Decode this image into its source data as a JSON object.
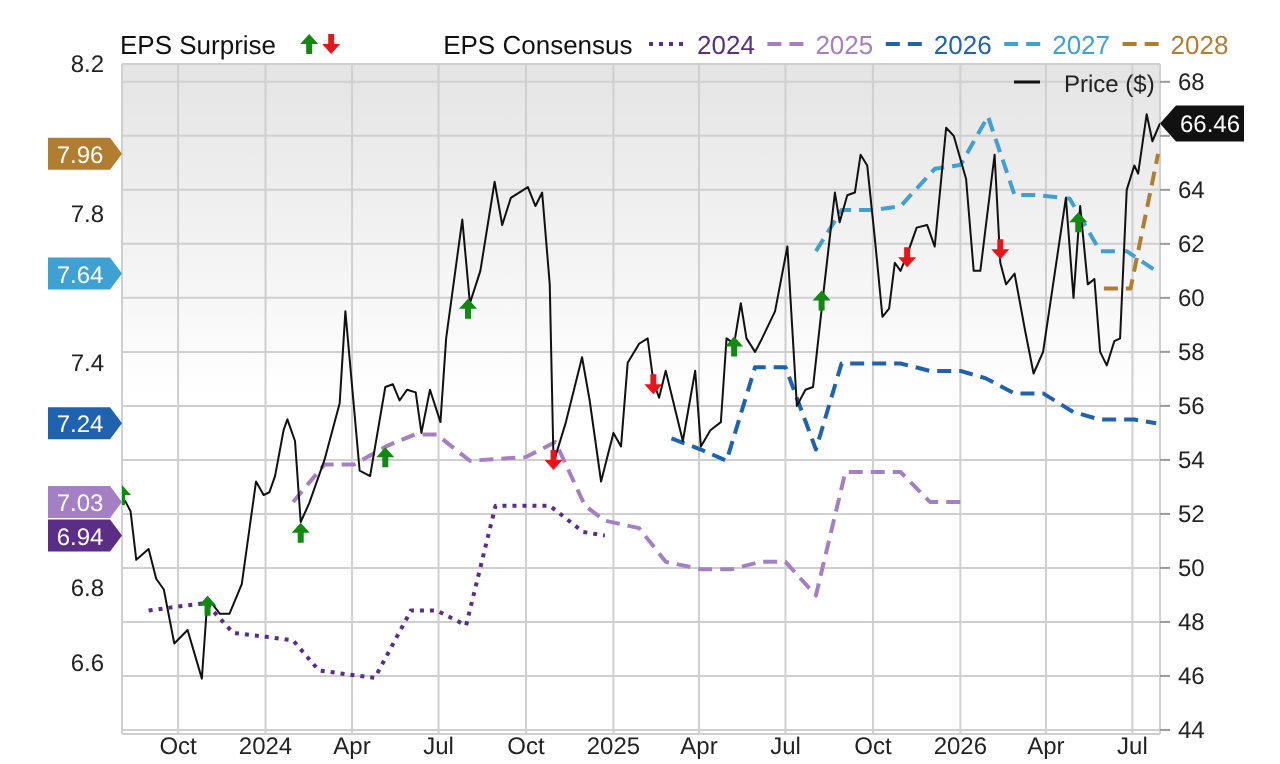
{
  "chart_data": {
    "type": "line",
    "legend_title": "EPS Consensus",
    "legend": "top",
    "grid": true,
    "xlim": [
      "2023-08-03",
      "2026-07-30"
    ],
    "xticks": [
      {
        "value": "2023-10-01",
        "label": "Oct"
      },
      {
        "value": "2024-01-01",
        "label": "2024"
      },
      {
        "value": "2024-04-01",
        "label": "Apr"
      },
      {
        "value": "2024-07-01",
        "label": "Jul"
      },
      {
        "value": "2024-10-01",
        "label": "Oct"
      },
      {
        "value": "2025-01-01",
        "label": "2025"
      },
      {
        "value": "2025-04-01",
        "label": "Apr"
      },
      {
        "value": "2025-07-01",
        "label": "Jul"
      },
      {
        "value": "2025-10-01",
        "label": "Oct"
      },
      {
        "value": "2026-01-01",
        "label": "2026"
      },
      {
        "value": "2026-04-01",
        "label": "Apr"
      },
      {
        "value": "2026-07-01",
        "label": "Jul"
      }
    ],
    "ylim": [
      6.41,
      8.2
    ],
    "yticks": [
      6.6,
      6.8,
      6.94,
      7.03,
      7.24,
      7.4,
      7.64,
      7.8,
      7.96,
      8.2
    ],
    "y2lim": [
      43.85,
      68.66
    ],
    "y2ticks": [
      44,
      46,
      48,
      50,
      52,
      54,
      56,
      58,
      60,
      62,
      64,
      {
        "value": 66,
        "label": null
      },
      68
    ],
    "annotations": [
      "EPS Surprise"
    ],
    "series": [
      {
        "name": "2024",
        "color": "#5b2d86",
        "line_style": "dotted",
        "x": [
          "2023-08-31",
          "2023-10-30",
          "2023-11-28",
          "2024-01-01",
          "2024-01-30",
          "2024-02-26",
          "2024-03-25",
          "2024-04-25",
          "2024-06-02",
          "2024-06-29",
          "2024-07-30",
          "2024-08-30",
          "2024-10-26",
          "2024-11-30",
          "2024-12-23"
        ],
        "values": [
          6.74,
          6.76,
          6.68,
          6.67,
          6.66,
          6.58,
          6.57,
          6.56,
          6.74,
          6.74,
          6.7,
          7.02,
          7.02,
          6.95,
          6.94
        ]
      },
      {
        "name": "2025",
        "color": "#a57fc4",
        "line_style": "dashed",
        "x": [
          "2024-01-30",
          "2024-03-03",
          "2024-04-03",
          "2024-05-08",
          "2024-06-06",
          "2024-06-29",
          "2024-08-03",
          "2024-10-01",
          "2024-11-01",
          "2024-12-02",
          "2024-12-23",
          "2025-01-28",
          "2025-02-25",
          "2025-04-03",
          "2025-05-05",
          "2025-06-05",
          "2025-07-01",
          "2025-08-02",
          "2025-09-02",
          "2025-10-30",
          "2025-11-30",
          "2026-01-01"
        ],
        "values": [
          7.03,
          7.13,
          7.13,
          7.18,
          7.21,
          7.21,
          7.14,
          7.15,
          7.19,
          7.02,
          6.98,
          6.96,
          6.87,
          6.85,
          6.85,
          6.87,
          6.87,
          6.78,
          7.11,
          7.11,
          7.03,
          7.03
        ]
      },
      {
        "name": "2026",
        "color": "#1f62b0",
        "line_style": "dashed",
        "x": [
          "2025-03-03",
          "2025-04-03",
          "2025-04-30",
          "2025-05-30",
          "2025-07-01",
          "2025-08-02",
          "2025-08-29",
          "2025-10-30",
          "2025-11-30",
          "2026-01-01",
          "2026-01-28",
          "2026-02-27",
          "2026-03-29",
          "2026-04-30",
          "2026-05-28",
          "2026-07-03",
          "2026-07-26"
        ],
        "values": [
          7.2,
          7.17,
          7.14,
          7.39,
          7.39,
          7.17,
          7.4,
          7.4,
          7.38,
          7.38,
          7.36,
          7.32,
          7.32,
          7.27,
          7.25,
          7.25,
          7.24
        ]
      },
      {
        "name": "2027",
        "color": "#3fa0d2",
        "line_style": "dashed",
        "x": [
          "2025-08-02",
          "2025-08-29",
          "2025-10-03",
          "2025-10-30",
          "2025-12-05",
          "2026-01-01",
          "2026-01-30",
          "2026-02-27",
          "2026-03-23",
          "2026-04-26",
          "2026-05-28",
          "2026-06-25",
          "2026-07-30"
        ],
        "values": [
          7.7,
          7.81,
          7.81,
          7.82,
          7.92,
          7.93,
          8.06,
          7.85,
          7.85,
          7.84,
          7.7,
          7.7,
          7.64
        ]
      },
      {
        "name": "2028",
        "color": "#b17e31",
        "line_style": "dashed",
        "x": [
          "2026-06-01",
          "2026-06-29",
          "2026-07-28"
        ],
        "values": [
          7.6,
          7.6,
          7.96
        ]
      },
      {
        "name": "Price ($)",
        "color": "#111111",
        "axis": "y2",
        "line_style": "solid",
        "x": [
          "2023-08-06",
          "2023-08-12",
          "2023-08-18",
          "2023-08-31",
          "2023-09-08",
          "2023-09-16",
          "2023-09-27",
          "2023-10-11",
          "2023-10-26",
          "2023-11-01",
          "2023-11-14",
          "2023-11-24",
          "2023-12-07",
          "2023-12-22",
          "2023-12-30",
          "2024-01-05",
          "2024-01-11",
          "2024-01-20",
          "2024-01-24",
          "2024-02-01",
          "2024-02-07",
          "2024-02-16",
          "2024-03-03",
          "2024-03-19",
          "2024-03-25",
          "2024-04-09",
          "2024-04-20",
          "2024-05-06",
          "2024-05-14",
          "2024-05-21",
          "2024-05-29",
          "2024-06-07",
          "2024-06-13",
          "2024-06-22",
          "2024-07-03",
          "2024-07-09",
          "2024-07-26",
          "2024-08-03",
          "2024-08-14",
          "2024-08-29",
          "2024-09-06",
          "2024-09-15",
          "2024-10-03",
          "2024-10-11",
          "2024-10-18",
          "2024-10-26",
          "2024-10-30",
          "2024-11-12",
          "2024-11-29",
          "2024-12-07",
          "2024-12-19",
          "2025-01-01",
          "2025-01-09",
          "2025-01-16",
          "2025-01-28",
          "2025-02-06",
          "2025-02-12",
          "2025-02-18",
          "2025-02-25",
          "2025-03-15",
          "2025-03-28",
          "2025-04-03",
          "2025-04-13",
          "2025-04-24",
          "2025-04-30",
          "2025-05-08",
          "2025-05-15",
          "2025-05-21",
          "2025-05-30",
          "2025-06-05",
          "2025-06-20",
          "2025-07-03",
          "2025-07-13",
          "2025-07-22",
          "2025-07-30",
          "2025-08-10",
          "2025-08-22",
          "2025-08-27",
          "2025-09-04",
          "2025-09-12",
          "2025-09-18",
          "2025-09-25",
          "2025-10-03",
          "2025-10-11",
          "2025-10-18",
          "2025-10-24",
          "2025-10-30",
          "2025-11-06",
          "2025-11-16",
          "2025-11-27",
          "2025-12-05",
          "2025-12-17",
          "2025-12-25",
          "2026-01-07",
          "2026-01-15",
          "2026-01-22",
          "2026-02-06",
          "2026-02-12",
          "2026-02-18",
          "2026-02-27",
          "2026-03-10",
          "2026-03-19",
          "2026-03-29",
          "2026-04-22",
          "2026-04-30",
          "2026-05-07",
          "2026-05-15",
          "2026-05-22",
          "2026-05-28",
          "2026-06-04",
          "2026-06-12",
          "2026-06-18",
          "2026-06-25",
          "2026-07-03",
          "2026-07-07",
          "2026-07-16",
          "2026-07-22",
          "2026-07-30"
        ],
        "values": [
          52.5,
          52.1,
          50.3,
          50.7,
          49.6,
          49.2,
          47.2,
          47.7,
          45.9,
          48.9,
          48.3,
          48.3,
          49.4,
          53.2,
          52.7,
          52.8,
          53.4,
          55.1,
          55.5,
          54.7,
          51.7,
          52.4,
          54,
          56.1,
          59.5,
          53.6,
          53.4,
          56.7,
          56.8,
          56.2,
          56.6,
          56.5,
          55,
          56.6,
          55.4,
          58.5,
          62.9,
          59.8,
          61,
          64.3,
          62.7,
          63.7,
          64.1,
          63.4,
          63.9,
          60.5,
          53.9,
          55.4,
          57.8,
          56.2,
          53.2,
          55,
          54.5,
          57.6,
          58.3,
          58.5,
          56.9,
          56.3,
          57.3,
          54.7,
          57.3,
          54.5,
          55.1,
          55.4,
          58.5,
          58.3,
          59.8,
          58.5,
          58,
          58.4,
          59.5,
          61.9,
          56,
          56.6,
          56.7,
          60.2,
          63.9,
          62.8,
          63.8,
          63.9,
          65.3,
          64.9,
          62.2,
          59.3,
          59.6,
          61.3,
          61,
          61.6,
          62.6,
          62.7,
          61.9,
          66.3,
          66,
          64.4,
          61,
          61,
          65.3,
          61.3,
          60.5,
          60.9,
          58.8,
          57.2,
          58,
          63.7,
          60,
          63.4,
          60.5,
          60.7,
          58,
          57.5,
          58.4,
          58.5,
          64,
          64.9,
          64.6,
          66.8,
          65.8,
          66.46
        ],
        "value_labels": [
          null,
          null,
          null,
          null,
          null,
          null,
          null,
          null,
          null,
          null,
          null,
          null,
          null,
          null,
          null,
          null,
          null,
          null,
          null,
          null,
          null,
          null,
          null,
          null,
          null,
          null,
          null,
          null,
          null,
          null,
          null,
          null,
          null,
          null,
          null,
          null,
          null,
          null,
          null,
          null,
          null,
          null,
          null,
          null,
          null,
          null,
          null,
          null,
          null,
          null,
          null,
          null,
          null,
          null,
          null,
          null,
          null,
          null,
          null,
          null,
          null,
          null,
          null,
          null,
          null,
          null,
          null,
          null,
          null,
          null,
          null,
          null,
          null,
          null,
          null,
          null,
          null,
          null,
          null,
          null,
          null,
          null,
          null,
          null,
          null,
          null,
          null,
          null,
          null,
          null,
          null,
          null,
          null,
          null,
          null,
          null,
          null,
          null,
          null,
          null,
          null,
          null,
          null,
          null,
          null,
          null,
          null,
          null,
          null,
          null,
          null,
          null,
          null,
          null,
          null,
          null,
          null,
          "66.46"
        ]
      },
      {
        "type": "scatter",
        "color": "#118a11",
        "axis": "y2",
        "marker": "triangle",
        "x": [
          "2023-08-03",
          "2023-11-01",
          "2024-02-07",
          "2024-05-06",
          "2024-08-01",
          "2025-05-08",
          "2025-08-08",
          "2026-05-05"
        ],
        "values": [
          52.7,
          48.6,
          51.3,
          54.1,
          59.6,
          58.2,
          59.9,
          62.8
        ]
      },
      {
        "type": "scatter",
        "color": "#e8141b",
        "axis": "y2",
        "marker": "triangle",
        "x": [
          "2024-10-30",
          "2025-02-12",
          "2025-11-06",
          "2026-02-12"
        ],
        "values": [
          54,
          56.8,
          61.5,
          61.8
        ]
      }
    ]
  }
}
